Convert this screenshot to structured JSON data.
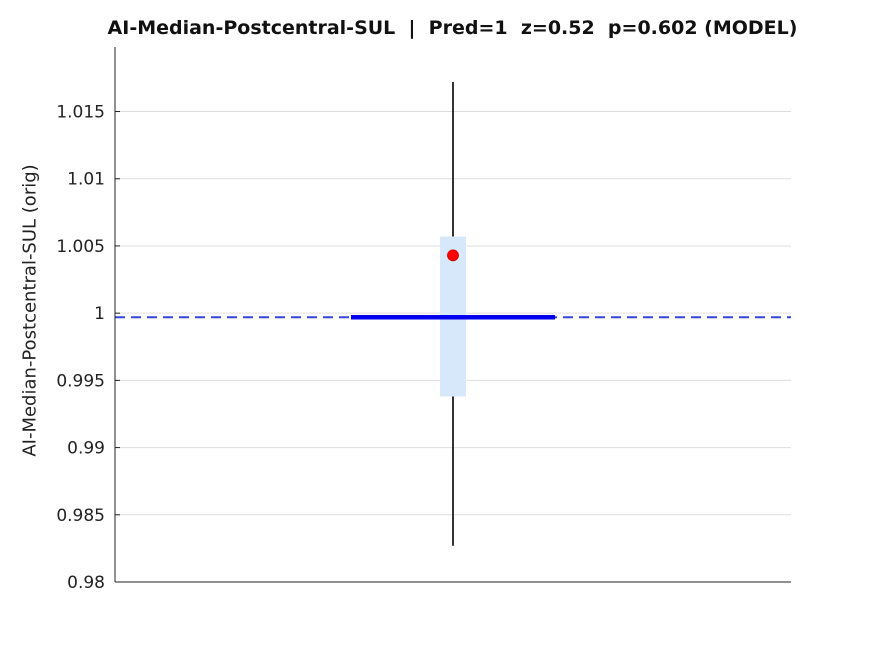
{
  "chart_data": {
    "type": "scatter",
    "title": "AI-Median-Postcentral-SUL  |  Pred=1  z=0.52  p=0.602 (MODEL)",
    "xlabel": "",
    "ylabel": "AI-Median-Postcentral-SUL (orig)",
    "ylim": [
      0.98,
      1.0198
    ],
    "yticks": [
      0.98,
      0.985,
      0.99,
      0.995,
      1,
      1.005,
      1.01,
      1.015
    ],
    "ytick_labels": [
      "0.98",
      "0.985",
      "0.99",
      "0.995",
      "1",
      "1.005",
      "1.01",
      "1.015"
    ],
    "grid": true,
    "reference_line": {
      "y": 0.9997,
      "style": "dashed",
      "color": "#3344dd"
    },
    "median_line": {
      "y": 0.9997,
      "color": "#0000ee"
    },
    "interval_band": {
      "low": 0.9938,
      "high": 1.0057,
      "color": "#d6e8fa"
    },
    "whisker": {
      "low": 0.9827,
      "high": 1.0172,
      "color": "#000000"
    },
    "point": {
      "y": 1.0043,
      "color": "#ff0000"
    }
  }
}
